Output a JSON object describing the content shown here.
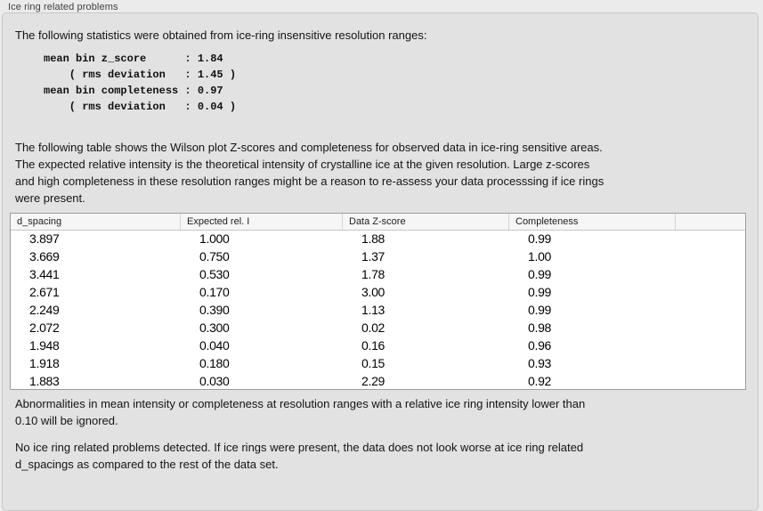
{
  "panel": {
    "title": "Ice ring related problems"
  },
  "intro": {
    "text": "The following statistics were obtained from ice-ring insensitive resolution ranges:"
  },
  "stats_block": {
    "text": "mean bin z_score      : 1.84\n    ( rms deviation   : 1.45 )\nmean bin completeness : 0.97\n    ( rms deviation   : 0.04 )",
    "mean_bin_z_score": "1.84",
    "z_score_rms_deviation": "1.45",
    "mean_bin_completeness": "0.97",
    "completeness_rms_deviation": "0.04"
  },
  "table_description": {
    "text": "The following table shows the Wilson plot Z-scores and completeness for observed data in ice-ring sensitive areas.\nThe expected relative intensity is the theoretical intensity of crystalline ice at the given resolution. Large z-scores\nand high completeness in these resolution ranges might be a reason to re-assess your data processsing if ice rings\nwere present."
  },
  "table": {
    "columns": [
      "d_spacing",
      "Expected rel. I",
      "Data Z-score",
      "Completeness",
      ""
    ],
    "rows": [
      [
        "3.897",
        "1.000",
        "1.88",
        "0.99"
      ],
      [
        "3.669",
        "0.750",
        "1.37",
        "1.00"
      ],
      [
        "3.441",
        "0.530",
        "1.78",
        "0.99"
      ],
      [
        "2.671",
        "0.170",
        "3.00",
        "0.99"
      ],
      [
        "2.249",
        "0.390",
        "1.13",
        "0.99"
      ],
      [
        "2.072",
        "0.300",
        "0.02",
        "0.98"
      ],
      [
        "1.948",
        "0.040",
        "0.16",
        "0.96"
      ],
      [
        "1.918",
        "0.180",
        "0.15",
        "0.93"
      ],
      [
        "1.883",
        "0.030",
        "2.29",
        "0.92"
      ]
    ]
  },
  "abnormalities_note": {
    "text": "Abnormalities in mean intensity or completeness at resolution ranges with a relative ice ring intensity lower than\n0.10 will be ignored."
  },
  "conclusion": {
    "text": "No ice ring related problems detected. If ice rings were present, the data does not look worse at ice ring related\nd_spacings as compared to the rest of the data set."
  },
  "colors": {
    "page_background": "#ebebeb",
    "groupbox_background": "#e2e2e2",
    "groupbox_border": "#c7c7c7",
    "table_background": "#ffffff",
    "table_border": "#9d9d9d",
    "header_background": "#f6f6f6",
    "text": "#141414"
  }
}
